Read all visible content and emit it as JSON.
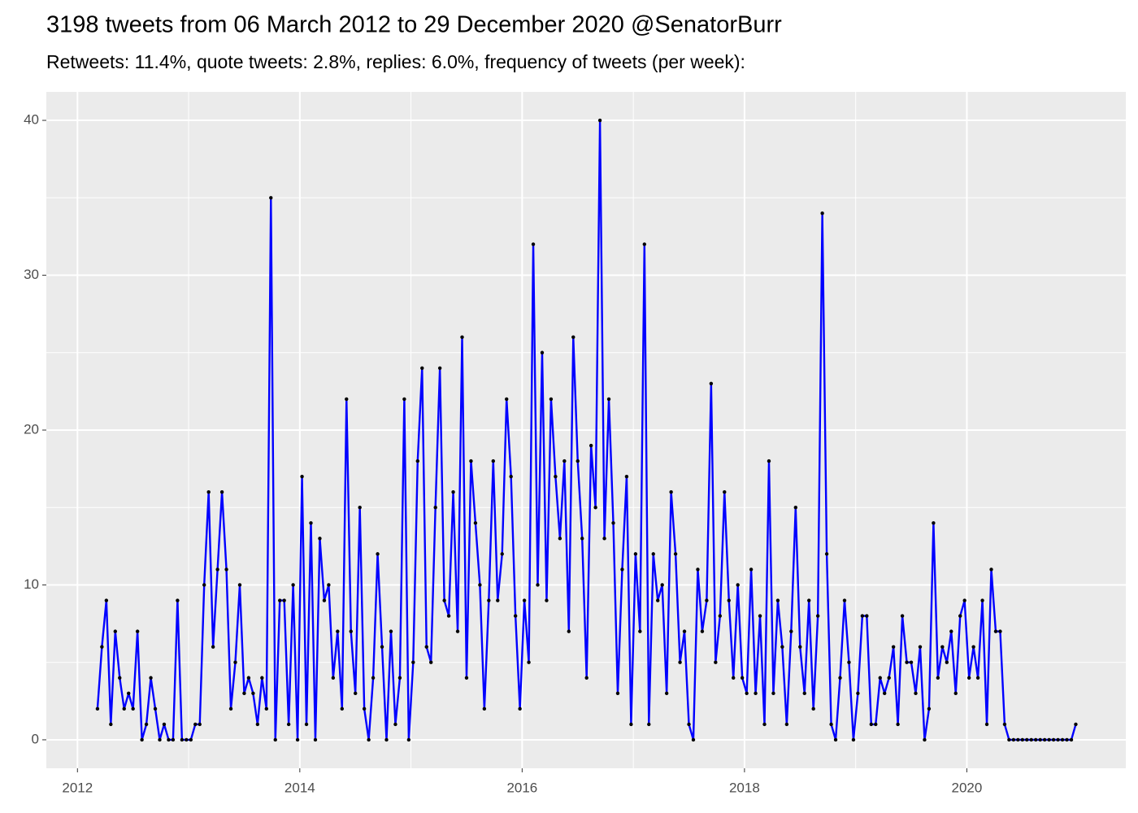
{
  "chart_data": {
    "type": "line",
    "title": "3198 tweets from 06 March 2012 to 29 December 2020 @SenatorBurr",
    "subtitle": "Retweets: 11.4%, quote tweets: 2.8%, replies: 6.0%, frequency of tweets (per week):",
    "color": "#0000ff",
    "point_color": "#000000",
    "grid": true,
    "xlim": [
      2011.72,
      2021.43
    ],
    "xticks": [
      2012,
      2014,
      2016,
      2018,
      2020
    ],
    "ylim": [
      -1.84,
      41.84
    ],
    "yticks": [
      0,
      10,
      20,
      30,
      40
    ],
    "x": [
      2012.18,
      2012.22,
      2012.26,
      2012.3,
      2012.34,
      2012.38,
      2012.42,
      2012.46,
      2012.5,
      2012.54,
      2012.58,
      2012.62,
      2012.66,
      2012.7,
      2012.74,
      2012.78,
      2012.82,
      2012.86,
      2012.9,
      2012.94,
      2012.98,
      2013.02,
      2013.06,
      2013.1,
      2013.14,
      2013.18,
      2013.22,
      2013.26,
      2013.3,
      2013.34,
      2013.38,
      2013.42,
      2013.46,
      2013.5,
      2013.54,
      2013.58,
      2013.62,
      2013.66,
      2013.7,
      2013.74,
      2013.78,
      2013.82,
      2013.86,
      2013.9,
      2013.94,
      2013.98,
      2014.02,
      2014.06,
      2014.1,
      2014.14,
      2014.18,
      2014.22,
      2014.26,
      2014.3,
      2014.34,
      2014.38,
      2014.42,
      2014.46,
      2014.5,
      2014.54,
      2014.58,
      2014.62,
      2014.66,
      2014.7,
      2014.74,
      2014.78,
      2014.82,
      2014.86,
      2014.9,
      2014.94,
      2014.98,
      2015.02,
      2015.06,
      2015.1,
      2015.14,
      2015.18,
      2015.22,
      2015.26,
      2015.3,
      2015.34,
      2015.38,
      2015.42,
      2015.46,
      2015.5,
      2015.54,
      2015.58,
      2015.62,
      2015.66,
      2015.7,
      2015.74,
      2015.78,
      2015.82,
      2015.86,
      2015.9,
      2015.94,
      2015.98,
      2016.02,
      2016.06,
      2016.1,
      2016.14,
      2016.18,
      2016.22,
      2016.26,
      2016.3,
      2016.34,
      2016.38,
      2016.42,
      2016.46,
      2016.5,
      2016.54,
      2016.58,
      2016.62,
      2016.66,
      2016.7,
      2016.74,
      2016.78,
      2016.82,
      2016.86,
      2016.9,
      2016.94,
      2016.98,
      2017.02,
      2017.06,
      2017.1,
      2017.14,
      2017.18,
      2017.22,
      2017.26,
      2017.3,
      2017.34,
      2017.38,
      2017.42,
      2017.46,
      2017.5,
      2017.54,
      2017.58,
      2017.62,
      2017.66,
      2017.7,
      2017.74,
      2017.78,
      2017.82,
      2017.86,
      2017.9,
      2017.94,
      2017.98,
      2018.02,
      2018.06,
      2018.1,
      2018.14,
      2018.18,
      2018.22,
      2018.26,
      2018.3,
      2018.34,
      2018.38,
      2018.42,
      2018.46,
      2018.5,
      2018.54,
      2018.58,
      2018.62,
      2018.66,
      2018.7,
      2018.74,
      2018.78,
      2018.82,
      2018.86,
      2018.9,
      2018.94,
      2018.98,
      2019.02,
      2019.06,
      2019.1,
      2019.14,
      2019.18,
      2019.22,
      2019.26,
      2019.3,
      2019.34,
      2019.38,
      2019.42,
      2019.46,
      2019.5,
      2019.54,
      2019.58,
      2019.62,
      2019.66,
      2019.7,
      2019.74,
      2019.78,
      2019.82,
      2019.86,
      2019.9,
      2019.94,
      2019.98,
      2020.02,
      2020.06,
      2020.1,
      2020.14,
      2020.18,
      2020.22,
      2020.26,
      2020.3,
      2020.34,
      2020.38,
      2020.42,
      2020.46,
      2020.5,
      2020.54,
      2020.58,
      2020.62,
      2020.66,
      2020.7,
      2020.74,
      2020.78,
      2020.82,
      2020.86,
      2020.9,
      2020.94,
      2020.98
    ],
    "values": [
      2,
      6,
      9,
      1,
      7,
      4,
      2,
      3,
      2,
      7,
      0,
      1,
      4,
      2,
      0,
      1,
      0,
      0,
      9,
      0,
      0,
      0,
      1,
      1,
      10,
      16,
      6,
      11,
      16,
      11,
      2,
      5,
      10,
      3,
      4,
      3,
      1,
      4,
      2,
      35,
      0,
      9,
      9,
      1,
      10,
      0,
      17,
      1,
      14,
      0,
      13,
      9,
      10,
      4,
      7,
      2,
      22,
      7,
      3,
      15,
      2,
      0,
      4,
      12,
      6,
      0,
      7,
      1,
      4,
      22,
      0,
      5,
      18,
      24,
      6,
      5,
      15,
      24,
      9,
      8,
      16,
      7,
      26,
      4,
      18,
      14,
      10,
      2,
      9,
      18,
      9,
      12,
      22,
      17,
      8,
      2,
      9,
      5,
      32,
      10,
      25,
      9,
      22,
      17,
      13,
      18,
      7,
      26,
      18,
      13,
      4,
      19,
      15,
      40,
      13,
      22,
      14,
      3,
      11,
      17,
      1,
      12,
      7,
      32,
      1,
      12,
      9,
      10,
      3,
      16,
      12,
      5,
      7,
      1,
      0,
      11,
      7,
      9,
      23,
      5,
      8,
      16,
      9,
      4,
      10,
      4,
      3,
      11,
      3,
      8,
      1,
      18,
      3,
      9,
      6,
      1,
      7,
      15,
      6,
      3,
      9,
      2,
      8,
      34,
      12,
      1,
      0,
      4,
      9,
      5,
      0,
      3,
      8,
      8,
      1,
      1,
      4,
      3,
      4,
      6,
      1,
      8,
      5,
      5,
      3,
      6,
      0,
      2,
      14,
      4,
      6,
      5,
      7,
      3,
      8,
      9,
      4,
      6,
      4,
      9,
      1,
      11,
      7,
      7,
      1,
      0,
      0,
      0,
      0,
      0,
      0,
      0,
      0,
      0,
      0,
      0,
      0,
      0,
      0,
      0,
      1
    ]
  }
}
